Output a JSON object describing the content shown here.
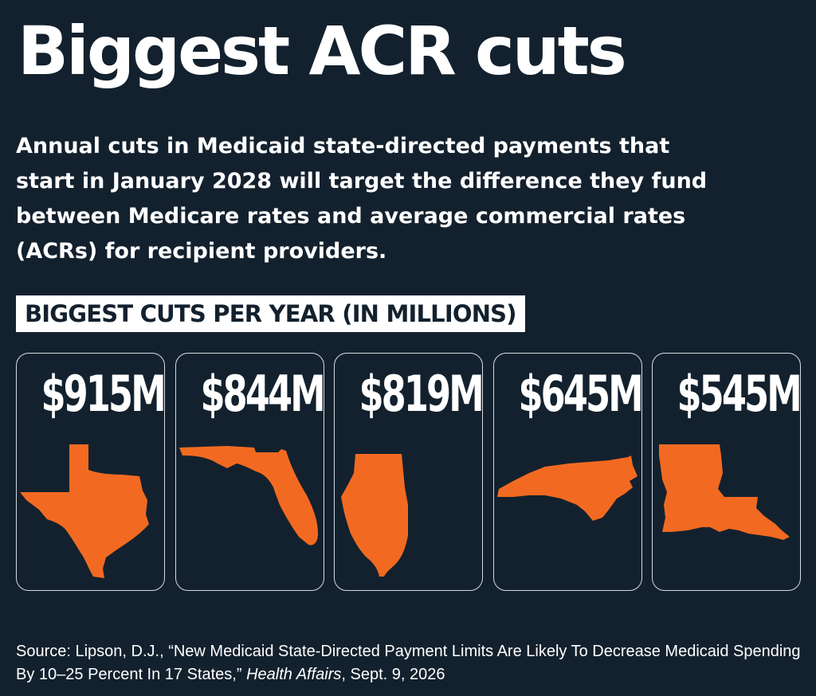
{
  "header": {
    "title": "Biggest ACR cuts",
    "subtitle": "Annual cuts in Medicaid state-directed payments that start in January 2028 will target the difference they fund between Medicare rates and average commercial rates (ACRs) for recipient providers."
  },
  "chart_data": {
    "type": "table",
    "title": "BIGGEST CUTS PER YEAR (IN MILLIONS)",
    "items": [
      {
        "display": "$915M",
        "value": 915,
        "shape_icon": "texas-icon"
      },
      {
        "display": "$844M",
        "value": 844,
        "shape_icon": "florida-icon"
      },
      {
        "display": "$819M",
        "value": 819,
        "shape_icon": "illinois-icon"
      },
      {
        "display": "$645M",
        "value": 645,
        "shape_icon": "north-carolina-icon"
      },
      {
        "display": "$545M",
        "value": 545,
        "shape_icon": "louisiana-icon"
      }
    ]
  },
  "source": {
    "prefix": "Source: Lipson, D.J., “New Medicaid State-Directed Payment Limits Are Likely To Decrease Medicaid Spending By 10–25 Percent In 17 States,” ",
    "journal": "Health Affairs",
    "suffix": ", Sept. 9, 2026"
  },
  "colors": {
    "background": "#13212e",
    "accent": "#f26a21",
    "text": "#ffffff",
    "card_border": "#d6dbe0"
  }
}
